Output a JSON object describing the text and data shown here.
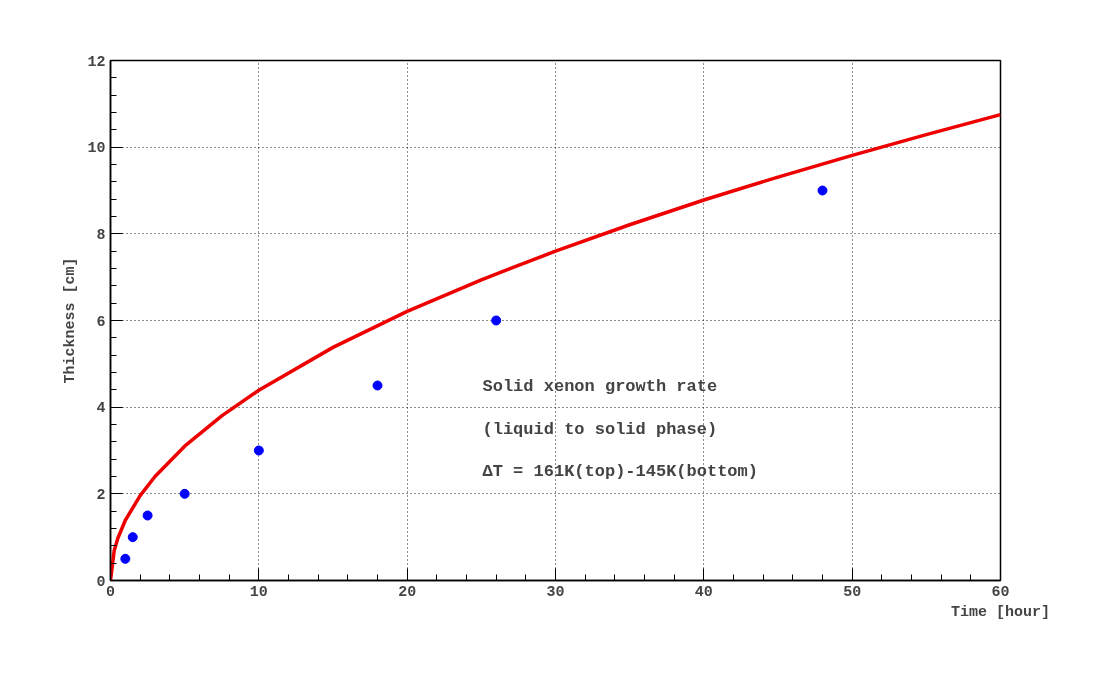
{
  "chart_data": {
    "type": "scatter",
    "xlabel": "Time [hour]",
    "ylabel": "Thickness [cm]",
    "xlim": [
      0,
      60
    ],
    "ylim": [
      0,
      12
    ],
    "xticks": [
      0,
      10,
      20,
      30,
      40,
      50,
      60
    ],
    "yticks": [
      0,
      2,
      4,
      6,
      8,
      10,
      12
    ],
    "grid": true,
    "marker": "circle",
    "series": [
      {
        "color": "#0000ff",
        "x": [
          1,
          1.5,
          2.5,
          5,
          10,
          18,
          26,
          48
        ],
        "values": [
          0.5,
          1,
          1.5,
          2,
          3,
          4.5,
          6,
          9
        ]
      },
      {
        "type": "line",
        "color": "#ee0000",
        "line_style": "solid",
        "marker": "none",
        "x": [
          0,
          0.25,
          0.5,
          1,
          2,
          3,
          5,
          7.5,
          10,
          15,
          20,
          25,
          30,
          35,
          40,
          45,
          50,
          55,
          60
        ],
        "values": [
          0,
          0.69,
          0.98,
          1.39,
          1.96,
          2.4,
          3.1,
          3.8,
          4.39,
          5.38,
          6.21,
          6.94,
          7.6,
          8.21,
          8.78,
          9.31,
          9.81,
          10.29,
          10.75
        ]
      }
    ],
    "annotations": [
      "Solid xenon growth rate",
      "(liquid to solid phase)",
      "ΔT = 161K(top)-145K(bottom)"
    ]
  }
}
